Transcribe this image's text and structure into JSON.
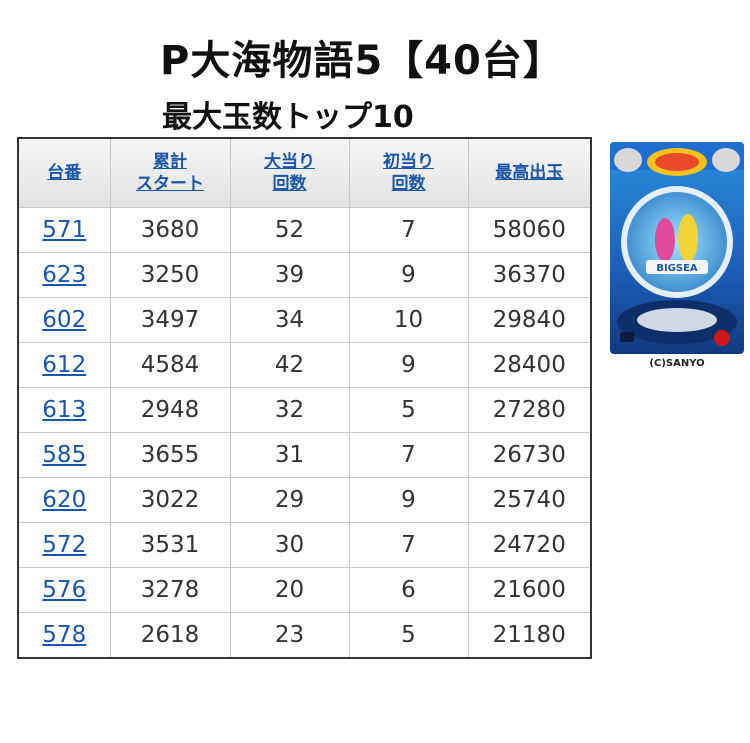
{
  "header": {
    "title": "P大海物語5【40台】",
    "subtitle": "最大玉数トップ10"
  },
  "table": {
    "columns": [
      [
        "台番"
      ],
      [
        "累計",
        "スタート"
      ],
      [
        "大当り",
        "回数"
      ],
      [
        "初当り",
        "回数"
      ],
      [
        "最高出玉"
      ]
    ],
    "rows": [
      [
        "571",
        "3680",
        "52",
        "7",
        "58060"
      ],
      [
        "623",
        "3250",
        "39",
        "9",
        "36370"
      ],
      [
        "602",
        "3497",
        "34",
        "10",
        "29840"
      ],
      [
        "612",
        "4584",
        "42",
        "9",
        "28400"
      ],
      [
        "613",
        "2948",
        "32",
        "5",
        "27280"
      ],
      [
        "585",
        "3655",
        "31",
        "7",
        "26730"
      ],
      [
        "620",
        "3022",
        "29",
        "9",
        "25740"
      ],
      [
        "572",
        "3531",
        "30",
        "7",
        "24720"
      ],
      [
        "576",
        "3278",
        "20",
        "6",
        "21600"
      ],
      [
        "578",
        "2618",
        "23",
        "5",
        "21180"
      ]
    ]
  },
  "machine_image": {
    "logo_text": "BIGSEA",
    "copyright": "(C)SANYO"
  },
  "colors": {
    "link": "#1a56a8",
    "header_bg": "#eaeaea",
    "border": "#333333"
  }
}
